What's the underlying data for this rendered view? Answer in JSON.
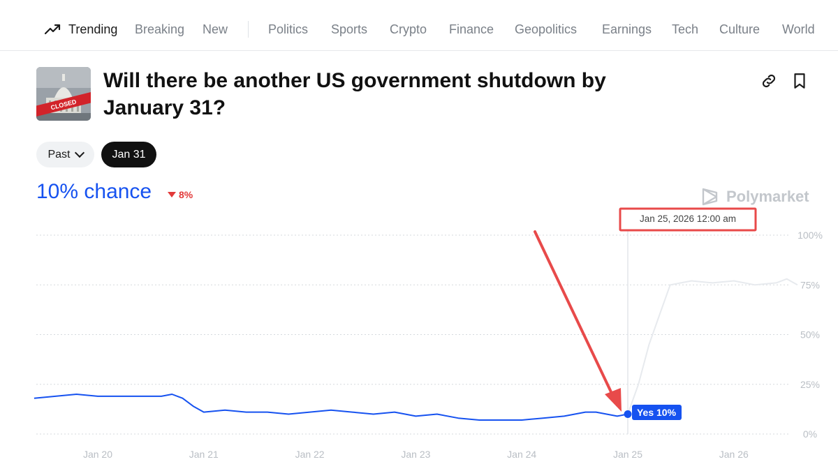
{
  "nav": {
    "trending": "Trending",
    "items": [
      "Breaking",
      "New",
      "Politics",
      "Sports",
      "Crypto",
      "Finance",
      "Geopolitics",
      "Earnings",
      "Tech",
      "Culture",
      "World"
    ]
  },
  "header": {
    "title": "Will there be another US government shutdown by January 31?",
    "thumb_text": "CLOSED"
  },
  "filters": {
    "past_label": "Past",
    "date_label": "Jan 31"
  },
  "summary": {
    "chance": "10% chance",
    "delta": "8%"
  },
  "watermark": "Polymarket",
  "colors": {
    "accent": "#1652f0",
    "negative": "#e23a3a",
    "annotation": "#e84a4a"
  },
  "chart_data": {
    "type": "line",
    "ylim": [
      0,
      100
    ],
    "y_ticks": [
      "100%",
      "75%",
      "50%",
      "25%",
      "0%"
    ],
    "x_ticks": [
      "Jan 20",
      "Jan 21",
      "Jan 22",
      "Jan 23",
      "Jan 24",
      "Jan 25",
      "Jan 26"
    ],
    "tooltip": "Jan 25, 2026 12:00 am",
    "hover_label": "Yes 10%",
    "hover_value": 10,
    "series": [
      {
        "line": "before_hover",
        "x": [
          19.4,
          19.6,
          19.8,
          20.0,
          20.2,
          20.4,
          20.6,
          20.7,
          20.8,
          20.9,
          21.0,
          21.2,
          21.4,
          21.6,
          21.8,
          22.0,
          22.2,
          22.4,
          22.6,
          22.8,
          23.0,
          23.2,
          23.4,
          23.6,
          23.8,
          24.0,
          24.2,
          24.4,
          24.6,
          24.7,
          24.8,
          24.9,
          25.0
        ],
        "y": [
          18,
          19,
          20,
          19,
          19,
          19,
          19,
          20,
          18,
          14,
          11,
          12,
          11,
          11,
          10,
          11,
          12,
          11,
          10,
          11,
          9,
          10,
          8,
          7,
          7,
          7,
          8,
          9,
          11,
          11,
          10,
          9,
          10
        ]
      },
      {
        "line": "after_hover",
        "x": [
          25.0,
          25.1,
          25.2,
          25.3,
          25.4,
          25.6,
          25.8,
          26.0,
          26.2,
          26.4,
          26.5,
          26.6
        ],
        "y": [
          10,
          25,
          45,
          60,
          75,
          77,
          76,
          77,
          75,
          76,
          78,
          75
        ]
      }
    ]
  }
}
